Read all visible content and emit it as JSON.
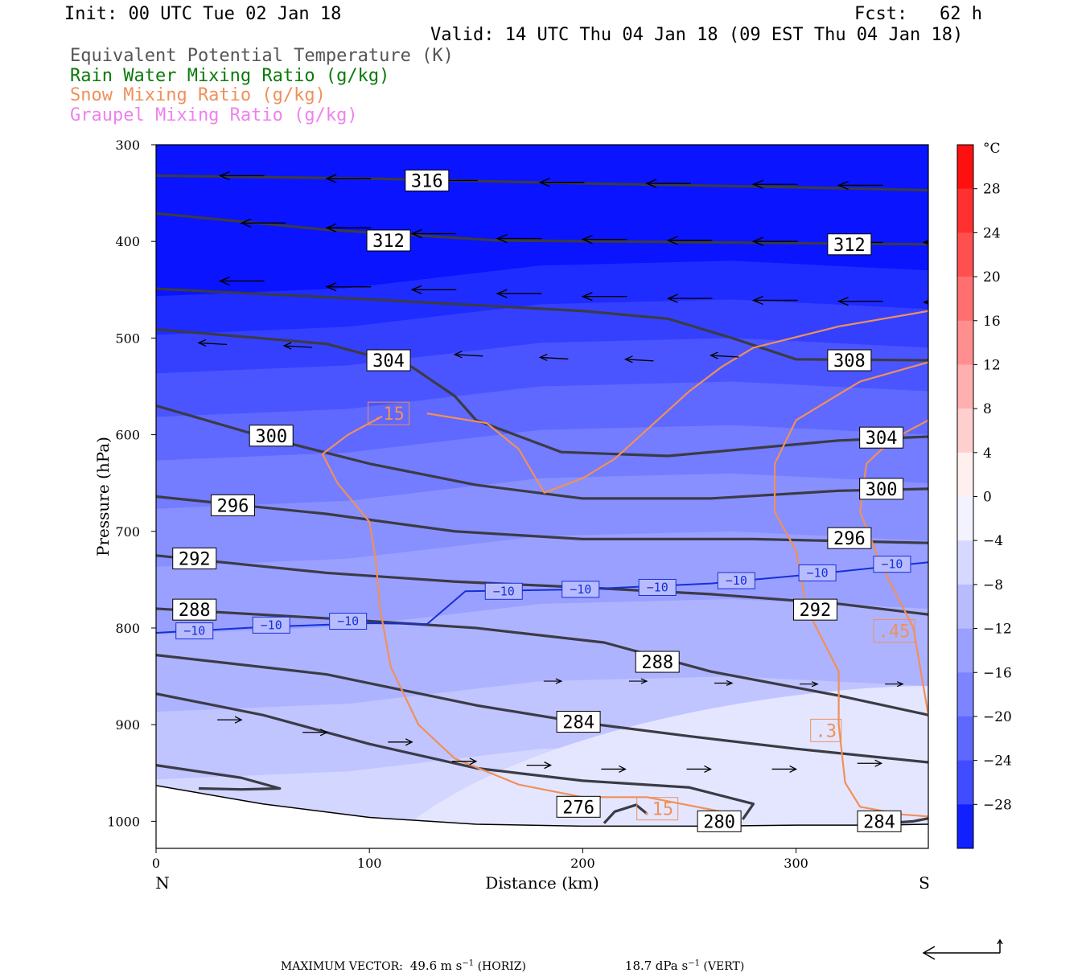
{
  "header": {
    "init": "Init: 00 UTC Tue 02 Jan 18",
    "fcst": "Fcst:   62 h",
    "valid": "Valid: 14 UTC Thu 04 Jan 18 (09 EST Thu 04 Jan 18)",
    "legend": [
      {
        "text": "Equivalent Potential Temperature (K)",
        "color": "#555555"
      },
      {
        "text": "Rain Water Mixing Ratio (g/kg)",
        "color": "#0a7a0a"
      },
      {
        "text": "Snow Mixing Ratio (g/kg)",
        "color": "#f0905a"
      },
      {
        "text": "Graupel Mixing Ratio (g/kg)",
        "color": "#ee82ee"
      }
    ]
  },
  "axes": {
    "ylabel": "Pressure (hPa)",
    "xlabel": "Distance (km)",
    "left_end": "N",
    "right_end": "S",
    "yticks": [
      "300",
      "400",
      "500",
      "600",
      "700",
      "800",
      "900",
      "1000"
    ],
    "xticks": [
      "0",
      "100",
      "200",
      "300"
    ]
  },
  "colorbar": {
    "unit": "°C",
    "labels": [
      "28",
      "24",
      "20",
      "16",
      "12",
      "8",
      "4",
      "0",
      "−4",
      "−8",
      "−12",
      "−16",
      "−20",
      "−24",
      "−28"
    ]
  },
  "footer": {
    "prefix": "MAXIMUM VECTOR:",
    "horiz_value": "49.6",
    "horiz_unit": "m s",
    "horiz_exp": "−1",
    "horiz_tag": "(HORIZ)",
    "vert_value": "18.7",
    "vert_unit": "dPa s",
    "vert_exp": "−1",
    "vert_tag": "(VERT)"
  },
  "chart_data": {
    "type": "cross-section",
    "x_range_km": [
      0,
      362
    ],
    "y_range_hPa": [
      300,
      1028
    ],
    "shading_field": "Temperature (°C)",
    "shading_range": [
      -32,
      32
    ],
    "theta_e_labels": [
      {
        "label": "316",
        "x": 127,
        "p": 337
      },
      {
        "label": "312",
        "x": 109,
        "p": 399
      },
      {
        "label": "312",
        "x": 325,
        "p": 403
      },
      {
        "label": "304",
        "x": 109,
        "p": 523
      },
      {
        "label": "308",
        "x": 325,
        "p": 523
      },
      {
        "label": "300",
        "x": 54,
        "p": 601
      },
      {
        "label": "304",
        "x": 340,
        "p": 603
      },
      {
        "label": "300",
        "x": 340,
        "p": 656
      },
      {
        "label": "296",
        "x": 36,
        "p": 673
      },
      {
        "label": "296",
        "x": 325,
        "p": 707
      },
      {
        "label": "292",
        "x": 18,
        "p": 728
      },
      {
        "label": "292",
        "x": 309,
        "p": 781
      },
      {
        "label": "288",
        "x": 18,
        "p": 781
      },
      {
        "label": "288",
        "x": 235,
        "p": 835
      },
      {
        "label": "284",
        "x": 198,
        "p": 897
      },
      {
        "label": "276",
        "x": 198,
        "p": 985
      },
      {
        "label": "280",
        "x": 264,
        "p": 1000
      },
      {
        "label": "284",
        "x": 339,
        "p": 1000
      }
    ],
    "isotherm_labels": [
      {
        "label": "−10",
        "x": 18,
        "p": 803
      },
      {
        "label": "−10",
        "x": 54,
        "p": 797
      },
      {
        "label": "−10",
        "x": 90,
        "p": 793
      },
      {
        "label": "−10",
        "x": 163,
        "p": 762
      },
      {
        "label": "−10",
        "x": 199,
        "p": 760
      },
      {
        "label": "−10",
        "x": 235,
        "p": 758
      },
      {
        "label": "−10",
        "x": 272,
        "p": 751
      },
      {
        "label": "−10",
        "x": 310,
        "p": 743
      },
      {
        "label": "−10",
        "x": 345,
        "p": 734
      }
    ],
    "snow_labels": [
      {
        "label": ".15",
        "x": 109,
        "p": 578
      },
      {
        "label": ".15",
        "x": 235,
        "p": 987
      },
      {
        "label": ".3",
        "x": 314,
        "p": 906
      },
      {
        "label": ".45",
        "x": 346,
        "p": 803
      }
    ]
  }
}
